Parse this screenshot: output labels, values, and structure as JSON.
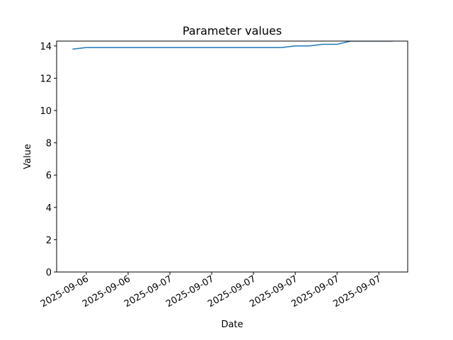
{
  "chart_data": {
    "type": "line",
    "title": "Parameter values",
    "x_label": "Date",
    "y_label": "Value",
    "x": [
      -0.33,
      0,
      0.33,
      0.67,
      1,
      1.33,
      1.67,
      2,
      2.33,
      2.67,
      3,
      3.33,
      3.67,
      4,
      4.33,
      4.67,
      5,
      5.33,
      5.67,
      6,
      6.33,
      6.67,
      7,
      7.33
    ],
    "series": [
      {
        "name": "Value",
        "color": "#1f77b4",
        "values": [
          13.8,
          13.9,
          13.9,
          13.9,
          13.9,
          13.9,
          13.9,
          13.9,
          13.9,
          13.9,
          13.9,
          13.9,
          13.9,
          13.9,
          13.9,
          13.9,
          14.0,
          14.0,
          14.1,
          14.1,
          14.3,
          14.3,
          14.3,
          14.3
        ]
      }
    ],
    "xlim": [
      -0.71,
      7.69
    ],
    "xticks": [
      {
        "value": 0,
        "label": "2025-09-06"
      },
      {
        "value": 1,
        "label": "2025-09-06"
      },
      {
        "value": 2,
        "label": "2025-09-07"
      },
      {
        "value": 3,
        "label": "2025-09-07"
      },
      {
        "value": 4,
        "label": "2025-09-07"
      },
      {
        "value": 5,
        "label": "2025-09-07"
      },
      {
        "value": 6,
        "label": "2025-09-07"
      },
      {
        "value": 7,
        "label": "2025-09-07"
      }
    ],
    "ylim": [
      0,
      14.3
    ],
    "yticks": [
      0,
      2,
      4,
      6,
      8,
      10,
      12,
      14
    ],
    "grid": false
  }
}
